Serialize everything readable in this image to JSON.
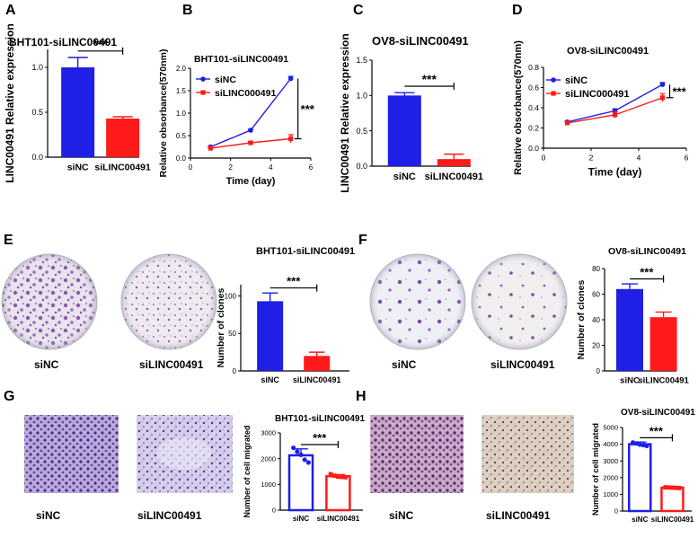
{
  "colors": {
    "blue": "#1f1fe6",
    "red": "#ff1a1a"
  },
  "chart_data": [
    {
      "panel": "A",
      "type": "bar",
      "title": "BHT101-siLINC00491",
      "ylabel": "LINC00491 Relative expression",
      "categories": [
        "siNC",
        "siLINC00491"
      ],
      "values": [
        1.0,
        0.43
      ],
      "errors": [
        0.11,
        0.02
      ],
      "ylim": [
        0,
        1.2
      ],
      "yticks": [
        "0.0",
        "0.5",
        "1.0"
      ],
      "significance": "***"
    },
    {
      "panel": "B",
      "type": "line",
      "title": "BHT101-siLINC00491",
      "ylabel": "Relative obsorbance(570nm)",
      "xlabel": "Time (day)",
      "xlim": [
        0,
        6
      ],
      "ylim": [
        0,
        2
      ],
      "xticks": [
        "0",
        "2",
        "4",
        "6"
      ],
      "yticks": [
        "0.0",
        "0.5",
        "1.0",
        "1.5",
        "2.0"
      ],
      "x": [
        1,
        3,
        5
      ],
      "series": [
        {
          "name": "siNC",
          "values": [
            0.25,
            0.62,
            1.77
          ],
          "errors": [
            0.02,
            0.02,
            0.05
          ]
        },
        {
          "name": "siLINC000491",
          "values": [
            0.22,
            0.34,
            0.43
          ],
          "errors": [
            0.02,
            0.02,
            0.09
          ]
        }
      ],
      "significance": "***"
    },
    {
      "panel": "C",
      "type": "bar",
      "title": "OV8-siLINC00491",
      "ylabel": "LINC00491 Relative expression",
      "categories": [
        "siNC",
        "siLINC00491"
      ],
      "values": [
        1.0,
        0.1
      ],
      "errors": [
        0.04,
        0.07
      ],
      "ylim": [
        0,
        1.5
      ],
      "yticks": [
        "0.0",
        "0.5",
        "1.0",
        "1.5"
      ],
      "significance": "***"
    },
    {
      "panel": "D",
      "type": "line",
      "title": "OV8-siLINC00491",
      "ylabel": "Relative obsorbance(570nm)",
      "xlabel": "Time (day)",
      "xlim": [
        0,
        6
      ],
      "ylim": [
        0,
        0.8
      ],
      "xticks": [
        "0",
        "2",
        "4",
        "6"
      ],
      "yticks": [
        "0.0",
        "0.2",
        "0.4",
        "0.6",
        "0.8"
      ],
      "x": [
        1,
        3,
        5
      ],
      "series": [
        {
          "name": "siNC",
          "values": [
            0.26,
            0.37,
            0.63
          ],
          "errors": [
            0.01,
            0.02,
            0.02
          ]
        },
        {
          "name": "siLINC000491",
          "values": [
            0.25,
            0.33,
            0.5
          ],
          "errors": [
            0.01,
            0.03,
            0.04
          ]
        }
      ],
      "significance": "***"
    },
    {
      "panel": "E",
      "type": "bar",
      "title": "BHT101-siLINC00491",
      "ylabel": "Number of clones",
      "categories": [
        "siNC",
        "siLINC00491"
      ],
      "values": [
        93,
        20
      ],
      "errors": [
        11,
        5
      ],
      "ylim": [
        0,
        115
      ],
      "yticks": [
        "0",
        "50",
        "100"
      ],
      "significance": "***"
    },
    {
      "panel": "F",
      "type": "bar",
      "title": "OV8-siLINC00491",
      "ylabel": "Number of clones",
      "categories": [
        "siNC",
        "siLINC00491"
      ],
      "values": [
        64,
        42
      ],
      "errors": [
        4,
        4
      ],
      "ylim": [
        0,
        80
      ],
      "yticks": [
        "0",
        "20",
        "40",
        "60",
        "80"
      ],
      "significance": "***"
    },
    {
      "panel": "G",
      "type": "bar",
      "title": "BHT101-siLINC00491",
      "ylabel": "Number of cell migrated",
      "categories": [
        "siNC",
        "siLINC00491"
      ],
      "values": [
        2130,
        1320
      ],
      "errors": [
        250,
        60
      ],
      "points": [
        [
          2420,
          2270,
          2150,
          1960,
          1850
        ],
        [
          1400,
          1340,
          1300,
          1290,
          1280
        ]
      ],
      "ylim": [
        0,
        3000
      ],
      "yticks": [
        "0",
        "1000",
        "2000",
        "3000"
      ],
      "significance": "***"
    },
    {
      "panel": "H",
      "type": "bar",
      "title": "OV8-siLINC00491",
      "ylabel": "Number of cell migrated",
      "categories": [
        "siNC",
        "siLINC00491"
      ],
      "values": [
        4000,
        1400
      ],
      "errors": [
        130,
        40
      ],
      "points": [
        [
          4100,
          4050,
          3980,
          3950,
          3900
        ],
        [
          1420,
          1410,
          1400,
          1390,
          1380
        ]
      ],
      "ylim": [
        0,
        5000
      ],
      "yticks": [
        "0",
        "1000",
        "2000",
        "3000",
        "4000",
        "5000"
      ],
      "significance": "***"
    }
  ],
  "images": {
    "E": {
      "labels": [
        "siNC",
        "siLINC00491"
      ]
    },
    "F": {
      "labels": [
        "siNC",
        "siLINC00491"
      ]
    },
    "G": {
      "labels": [
        "siNC",
        "siLINC00491"
      ]
    },
    "H": {
      "labels": [
        "siNC",
        "siLINC00491"
      ]
    }
  }
}
